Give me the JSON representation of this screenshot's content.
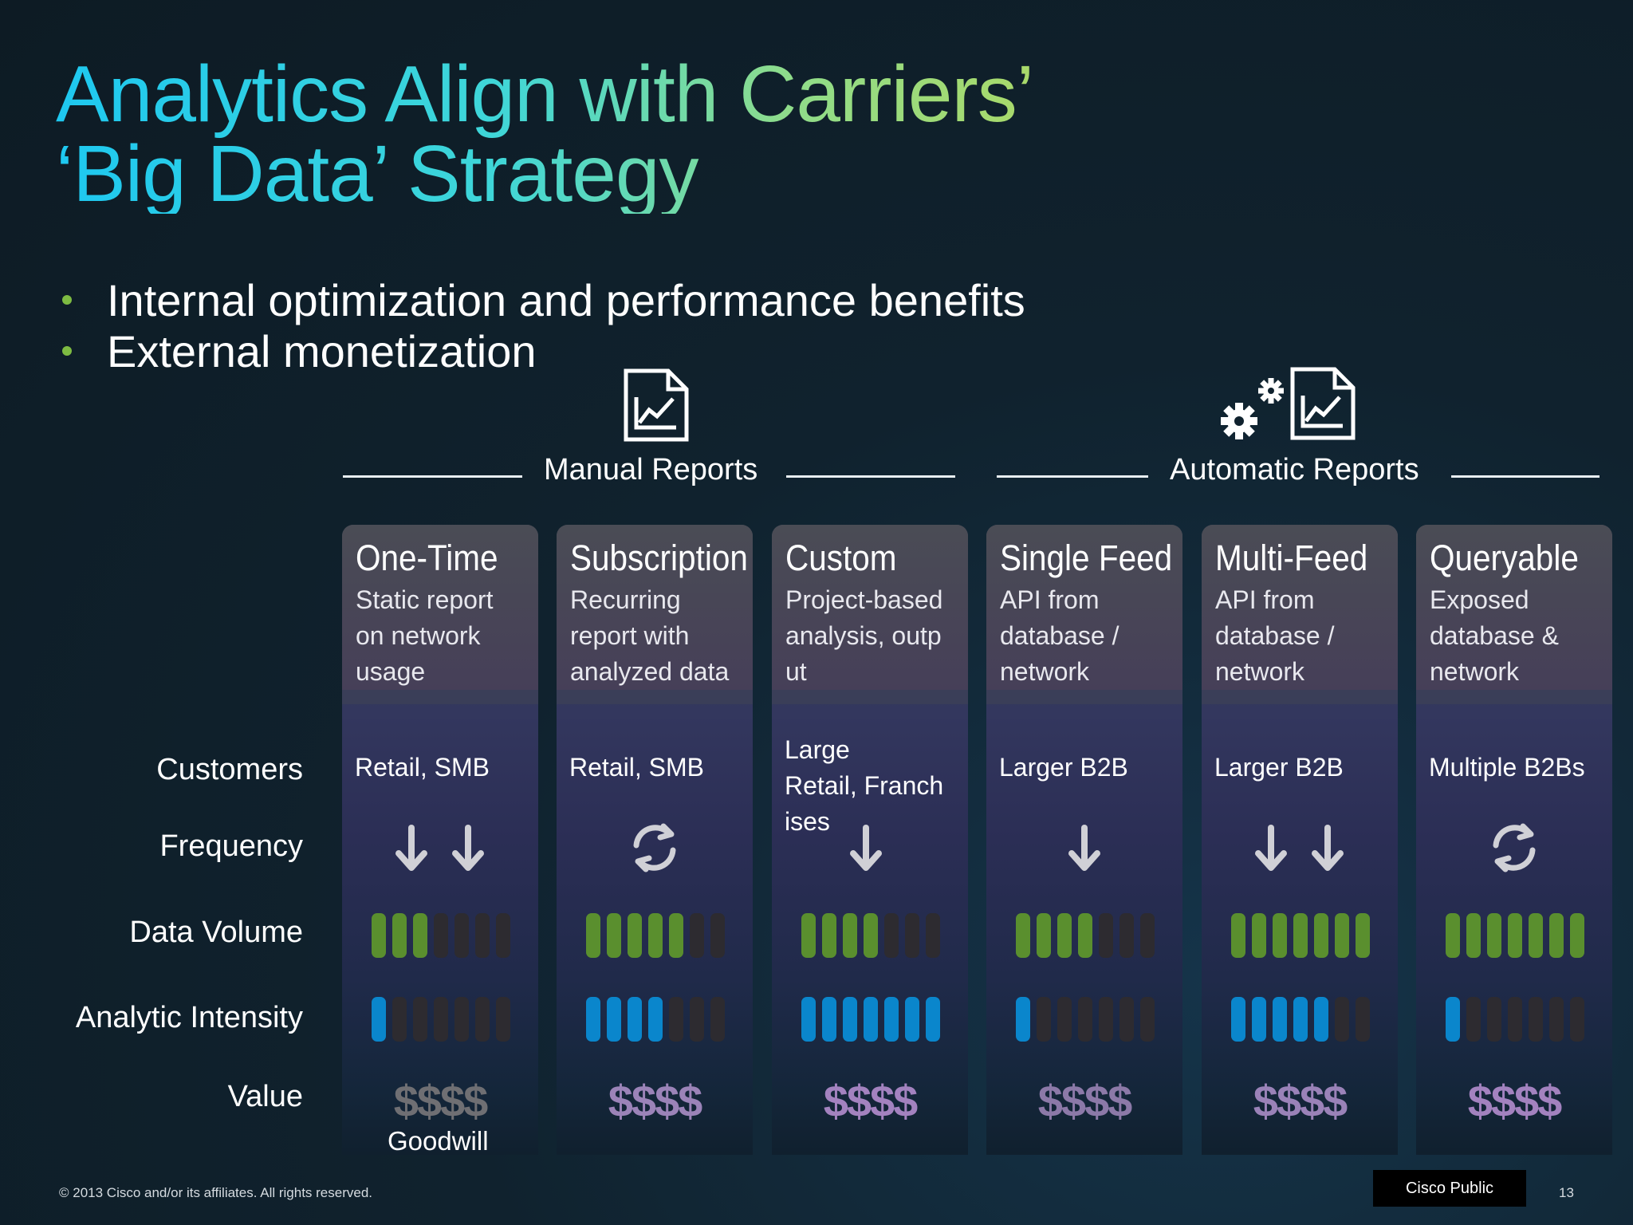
{
  "title": {
    "line1": "Analytics Align with Carriers’",
    "line2": "‘Big Data’ Strategy"
  },
  "bullets": [
    "Internal optimization and performance benefits",
    "External monetization"
  ],
  "groups": {
    "manual": "Manual Reports",
    "automatic": "Automatic Reports"
  },
  "row_labels": {
    "customers": "Customers",
    "frequency": "Frequency",
    "data_volume": "Data Volume",
    "analytic_intensity": "Analytic Intensity",
    "value": "Value"
  },
  "value_symbol": "$$$$",
  "columns": [
    {
      "title": "One-Time",
      "desc": [
        "Static report",
        "on network",
        "usage"
      ],
      "customers": [
        "Retail, SMB"
      ],
      "frequency_icon": "double-down-arrow-icon",
      "data_volume": 3,
      "analytic_intensity": 1,
      "value_color": "#6f6f73",
      "note": "Goodwill"
    },
    {
      "title": "Subscription",
      "desc": [
        "Recurring",
        "report with",
        "analyzed data"
      ],
      "customers": [
        "Retail, SMB"
      ],
      "frequency_icon": "refresh-icon",
      "data_volume": 5,
      "analytic_intensity": 4,
      "value_color": "#9b83b8"
    },
    {
      "title": "Custom",
      "desc": [
        "Project-based",
        "analysis, outp",
        "ut"
      ],
      "customers": [
        "Large",
        "Retail, Franch",
        "ises"
      ],
      "frequency_icon": "single-down-arrow-icon",
      "data_volume": 4,
      "analytic_intensity": 7,
      "value_color": "#a382bf"
    },
    {
      "title": "Single Feed",
      "desc": [
        "API from",
        "database /",
        "network"
      ],
      "customers": [
        "Larger B2B"
      ],
      "frequency_icon": "single-down-arrow-icon",
      "data_volume": 4,
      "analytic_intensity": 1,
      "value_color": "#8c79a8"
    },
    {
      "title": "Multi-Feed",
      "desc": [
        "API from",
        "database /",
        "network"
      ],
      "customers": [
        "Larger B2B"
      ],
      "frequency_icon": "double-down-arrow-icon",
      "data_volume": 7,
      "analytic_intensity": 5,
      "value_color": "#9a82b8"
    },
    {
      "title": "Queryable",
      "desc": [
        "Exposed",
        "database &",
        "network"
      ],
      "customers": [
        "Multiple B2Bs"
      ],
      "frequency_icon": "refresh-icon",
      "data_volume": 7,
      "analytic_intensity": 1,
      "value_color": "#a382bf"
    }
  ],
  "colors": {
    "data_volume_on": "#5a8f2e",
    "analytic_intensity_on": "#0a86cc",
    "bar_off": "#2d2b30",
    "bullet": "#7dbb42"
  },
  "footer": {
    "copyright": "© 2013 Cisco and/or its affiliates. All rights reserved.",
    "classification": "Cisco Public",
    "page": "13"
  }
}
